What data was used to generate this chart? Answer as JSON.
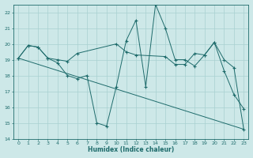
{
  "xlabel": "Humidex (Indice chaleur)",
  "xlim": [
    -0.5,
    23.5
  ],
  "ylim": [
    14,
    22.5
  ],
  "yticks": [
    14,
    15,
    16,
    17,
    18,
    19,
    20,
    21,
    22
  ],
  "xticks": [
    0,
    1,
    2,
    3,
    4,
    5,
    6,
    7,
    8,
    9,
    10,
    11,
    12,
    13,
    14,
    15,
    16,
    17,
    18,
    19,
    20,
    21,
    22,
    23
  ],
  "bg_color": "#cde8e8",
  "line_color": "#1e6b6b",
  "grid_color": "#a8d0d0",
  "series": [
    {
      "x": [
        0,
        1,
        2,
        3,
        4,
        5,
        6,
        7,
        8,
        9,
        10,
        11,
        12,
        13,
        14,
        15,
        16,
        17,
        18,
        19,
        20,
        21,
        22,
        23
      ],
      "y": [
        19.1,
        19.9,
        19.8,
        19.1,
        18.8,
        18.0,
        17.8,
        18.0,
        15.0,
        14.8,
        17.3,
        20.2,
        21.5,
        17.3,
        22.5,
        21.0,
        19.0,
        19.0,
        18.6,
        19.3,
        20.1,
        18.3,
        16.8,
        15.9
      ]
    },
    {
      "x": [
        0,
        1,
        2,
        3,
        4,
        5,
        6,
        10,
        11,
        12,
        15,
        16,
        17,
        18,
        19,
        20,
        21,
        22,
        23
      ],
      "y": [
        19.1,
        19.9,
        19.8,
        19.1,
        19.0,
        18.9,
        19.4,
        20.0,
        19.5,
        19.3,
        19.2,
        18.7,
        18.7,
        19.4,
        19.3,
        20.1,
        19.0,
        18.5,
        14.6
      ]
    },
    {
      "x": [
        0,
        23
      ],
      "y": [
        19.1,
        14.6
      ]
    }
  ]
}
